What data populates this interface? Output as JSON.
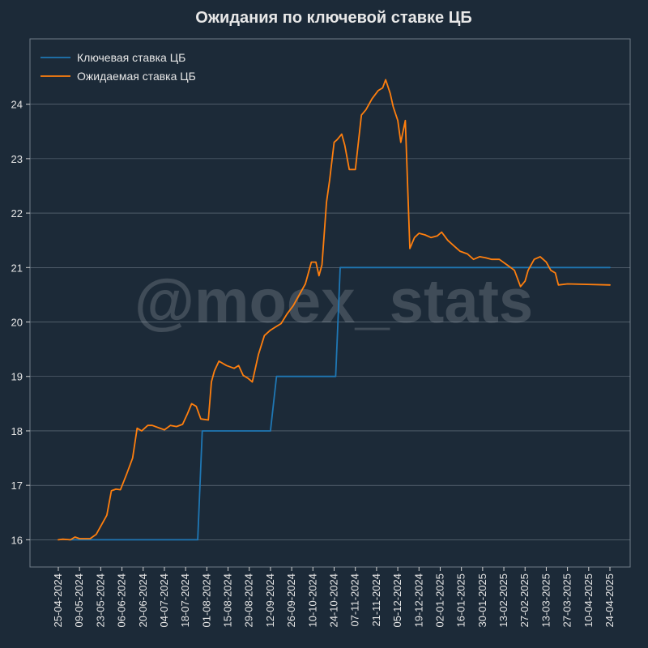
{
  "chart_data": {
    "type": "line",
    "title": "Ожидания по ключевой ставке ЦБ",
    "xlabel": "",
    "ylabel": "",
    "watermark": "@moex_stats",
    "ylim": [
      15.5,
      25.2
    ],
    "yticks": [
      16,
      17,
      18,
      19,
      20,
      21,
      22,
      23,
      24
    ],
    "ytick_labels": [
      "16",
      "17",
      "18",
      "19",
      "20",
      "21",
      "22",
      "23",
      "24"
    ],
    "x_start": "2024-04-25",
    "x_end": "2025-04-24",
    "xticks": [
      "2024-04-25",
      "2024-05-09",
      "2024-05-23",
      "2024-06-06",
      "2024-06-20",
      "2024-07-04",
      "2024-07-18",
      "2024-08-01",
      "2024-08-15",
      "2024-08-29",
      "2024-09-12",
      "2024-09-26",
      "2024-10-10",
      "2024-10-24",
      "2024-11-07",
      "2024-11-21",
      "2024-12-05",
      "2024-12-19",
      "2025-01-02",
      "2025-01-16",
      "2025-01-30",
      "2025-02-13",
      "2025-02-27",
      "2025-03-13",
      "2025-03-27",
      "2025-04-10",
      "2025-04-24"
    ],
    "xtick_labels": [
      "25-04-2024",
      "09-05-2024",
      "23-05-2024",
      "06-06-2024",
      "20-06-2024",
      "04-07-2024",
      "18-07-2024",
      "01-08-2024",
      "15-08-2024",
      "29-08-2024",
      "12-09-2024",
      "26-09-2024",
      "10-10-2024",
      "24-10-2024",
      "07-11-2024",
      "21-11-2024",
      "05-12-2024",
      "19-12-2024",
      "02-01-2025",
      "16-01-2025",
      "30-01-2025",
      "13-02-2025",
      "27-02-2025",
      "13-03-2025",
      "27-03-2025",
      "10-04-2025",
      "24-04-2025"
    ],
    "grid": "horizontal",
    "legend_position": "top-left",
    "series": [
      {
        "name": "Ключевая ставка ЦБ",
        "color": "#1f77b4",
        "points": [
          [
            "2024-05-02",
            16.0
          ],
          [
            "2024-07-26",
            16.0
          ],
          [
            "2024-07-29",
            18.0
          ],
          [
            "2024-09-12",
            18.0
          ],
          [
            "2024-09-16",
            19.0
          ],
          [
            "2024-10-25",
            19.0
          ],
          [
            "2024-10-28",
            21.0
          ],
          [
            "2025-04-24",
            21.0
          ]
        ]
      },
      {
        "name": "Ожидаемая ставка ЦБ",
        "color": "#ff7f0e",
        "points": [
          [
            "2024-04-25",
            16.0
          ],
          [
            "2024-04-28",
            16.01
          ],
          [
            "2024-05-03",
            16.0
          ],
          [
            "2024-05-06",
            16.05
          ],
          [
            "2024-05-09",
            16.02
          ],
          [
            "2024-05-16",
            16.02
          ],
          [
            "2024-05-20",
            16.1
          ],
          [
            "2024-05-24",
            16.3
          ],
          [
            "2024-05-27",
            16.45
          ],
          [
            "2024-05-30",
            16.9
          ],
          [
            "2024-06-02",
            16.93
          ],
          [
            "2024-06-05",
            16.92
          ],
          [
            "2024-06-09",
            17.2
          ],
          [
            "2024-06-13",
            17.5
          ],
          [
            "2024-06-16",
            18.05
          ],
          [
            "2024-06-19",
            18.0
          ],
          [
            "2024-06-23",
            18.1
          ],
          [
            "2024-06-26",
            18.1
          ],
          [
            "2024-07-01",
            18.05
          ],
          [
            "2024-07-04",
            18.02
          ],
          [
            "2024-07-08",
            18.1
          ],
          [
            "2024-07-12",
            18.08
          ],
          [
            "2024-07-16",
            18.12
          ],
          [
            "2024-07-19",
            18.3
          ],
          [
            "2024-07-22",
            18.5
          ],
          [
            "2024-07-25",
            18.45
          ],
          [
            "2024-07-28",
            18.22
          ],
          [
            "2024-08-02",
            18.2
          ],
          [
            "2024-08-04",
            18.9
          ],
          [
            "2024-08-06",
            19.1
          ],
          [
            "2024-08-09",
            19.28
          ],
          [
            "2024-08-14",
            19.2
          ],
          [
            "2024-08-19",
            19.15
          ],
          [
            "2024-08-22",
            19.2
          ],
          [
            "2024-08-25",
            19.02
          ],
          [
            "2024-08-28",
            18.97
          ],
          [
            "2024-08-31",
            18.9
          ],
          [
            "2024-09-04",
            19.4
          ],
          [
            "2024-09-08",
            19.75
          ],
          [
            "2024-09-12",
            19.85
          ],
          [
            "2024-09-16",
            19.92
          ],
          [
            "2024-09-19",
            19.97
          ],
          [
            "2024-09-23",
            20.15
          ],
          [
            "2024-09-27",
            20.3
          ],
          [
            "2024-10-01",
            20.5
          ],
          [
            "2024-10-05",
            20.7
          ],
          [
            "2024-10-09",
            21.1
          ],
          [
            "2024-10-12",
            21.1
          ],
          [
            "2024-10-14",
            20.85
          ],
          [
            "2024-10-16",
            21.05
          ],
          [
            "2024-10-19",
            22.2
          ],
          [
            "2024-10-21",
            22.6
          ],
          [
            "2024-10-24",
            23.3
          ],
          [
            "2024-10-26",
            23.35
          ],
          [
            "2024-10-29",
            23.45
          ],
          [
            "2024-10-31",
            23.25
          ],
          [
            "2024-11-03",
            22.8
          ],
          [
            "2024-11-07",
            22.8
          ],
          [
            "2024-11-11",
            23.8
          ],
          [
            "2024-11-14",
            23.9
          ],
          [
            "2024-11-18",
            24.1
          ],
          [
            "2024-11-22",
            24.25
          ],
          [
            "2024-11-25",
            24.3
          ],
          [
            "2024-11-27",
            24.45
          ],
          [
            "2024-11-30",
            24.2
          ],
          [
            "2024-12-02",
            23.95
          ],
          [
            "2024-12-05",
            23.7
          ],
          [
            "2024-12-07",
            23.3
          ],
          [
            "2024-12-10",
            23.7
          ],
          [
            "2024-12-13",
            21.35
          ],
          [
            "2024-12-16",
            21.55
          ],
          [
            "2024-12-19",
            21.63
          ],
          [
            "2024-12-23",
            21.6
          ],
          [
            "2024-12-27",
            21.55
          ],
          [
            "2024-12-31",
            21.58
          ],
          [
            "2025-01-03",
            21.65
          ],
          [
            "2025-01-07",
            21.5
          ],
          [
            "2025-01-11",
            21.4
          ],
          [
            "2025-01-15",
            21.3
          ],
          [
            "2025-01-20",
            21.25
          ],
          [
            "2025-01-24",
            21.15
          ],
          [
            "2025-01-28",
            21.2
          ],
          [
            "2025-02-01",
            21.18
          ],
          [
            "2025-02-05",
            21.15
          ],
          [
            "2025-02-10",
            21.15
          ],
          [
            "2025-02-15",
            21.05
          ],
          [
            "2025-02-20",
            20.95
          ],
          [
            "2025-02-24",
            20.65
          ],
          [
            "2025-02-27",
            20.75
          ],
          [
            "2025-03-01",
            20.95
          ],
          [
            "2025-03-05",
            21.15
          ],
          [
            "2025-03-09",
            21.2
          ],
          [
            "2025-03-13",
            21.1
          ],
          [
            "2025-03-16",
            20.95
          ],
          [
            "2025-03-19",
            20.9
          ],
          [
            "2025-03-21",
            20.68
          ],
          [
            "2025-03-27",
            20.7
          ],
          [
            "2025-04-24",
            20.68
          ]
        ]
      }
    ]
  }
}
